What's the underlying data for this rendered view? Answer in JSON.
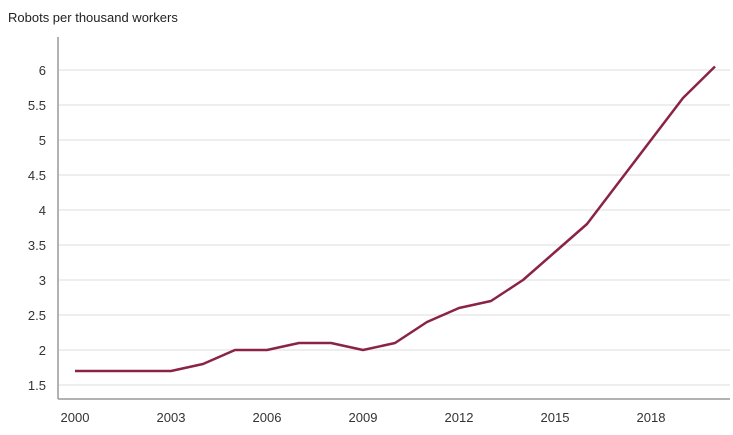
{
  "chart_data": {
    "type": "line",
    "title": "Robots per thousand workers",
    "xlabel": "",
    "ylabel": "Robots per thousand workers",
    "x": [
      2000,
      2001,
      2002,
      2003,
      2004,
      2005,
      2006,
      2007,
      2008,
      2009,
      2010,
      2011,
      2012,
      2013,
      2014,
      2015,
      2016,
      2017,
      2018,
      2019,
      2020
    ],
    "series": [
      {
        "name": "Robots per thousand workers",
        "color": "#8b2346",
        "values": [
          1.7,
          1.7,
          1.7,
          1.7,
          1.8,
          2.0,
          2.0,
          2.1,
          2.1,
          2.0,
          2.1,
          2.4,
          2.6,
          2.7,
          3.0,
          3.4,
          3.8,
          4.4,
          5.0,
          5.6,
          6.05
        ]
      }
    ],
    "xticks": [
      "2000",
      "2003",
      "2006",
      "2009",
      "2012",
      "2015",
      "2018"
    ],
    "yticks": [
      "1.5",
      "2",
      "2.5",
      "3",
      "3.5",
      "4",
      "4.5",
      "5",
      "5.5",
      "6"
    ],
    "xlim": [
      2000,
      2020
    ],
    "ylim": [
      1.28,
      6.45
    ],
    "grid": true,
    "legend": "none"
  }
}
